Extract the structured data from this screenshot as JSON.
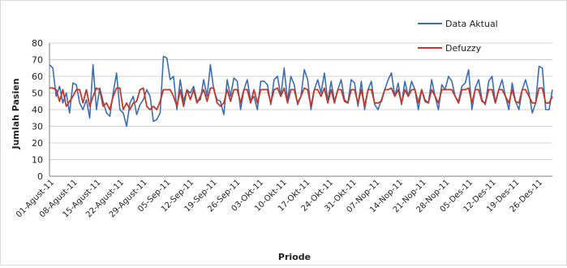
{
  "chart_data": {
    "type": "line",
    "title": "",
    "xlabel": "Priode",
    "ylabel": "Jumlah Pasien",
    "ylim": [
      0,
      80
    ],
    "yticks": [
      0,
      10,
      20,
      30,
      40,
      50,
      60,
      70,
      80
    ],
    "grid": "horizontal",
    "legend": "top-right",
    "x_tick_labels": [
      "01-Agust-11",
      "08-Agust-11",
      "15-Agust-11",
      "22-Agust-11",
      "29-Agust-11",
      "05-Sep-11",
      "12-Sep-11",
      "19-Sep-11",
      "26-Sep-11",
      "03-Okt-11",
      "10-Okt-11",
      "17-Okt-11",
      "24-Okt-11",
      "31-Okt-11",
      "07-Nop-11",
      "14-Nop-11",
      "21-Nop-11",
      "28-Nop-11",
      "05-Des-11",
      "12-Des-11",
      "19-Des-11",
      "26-Des-11"
    ],
    "series": [
      {
        "name": "Data Aktual",
        "color": "#3d6db3",
        "values": [
          67,
          65,
          48,
          54,
          44,
          50,
          38,
          56,
          55,
          44,
          40,
          46,
          35,
          67,
          40,
          53,
          45,
          38,
          36,
          50,
          62,
          40,
          38,
          30,
          44,
          48,
          37,
          43,
          46,
          52,
          48,
          33,
          34,
          38,
          72,
          71,
          58,
          60,
          40,
          58,
          45,
          52,
          50,
          54,
          45,
          46,
          58,
          48,
          67,
          52,
          46,
          45,
          37,
          58,
          48,
          59,
          57,
          40,
          52,
          58,
          45,
          48,
          40,
          57,
          57,
          55,
          43,
          58,
          60,
          48,
          65,
          45,
          60,
          55,
          43,
          48,
          64,
          58,
          40,
          52,
          58,
          50,
          62,
          45,
          57,
          45,
          52,
          58,
          46,
          44,
          58,
          56,
          42,
          57,
          40,
          52,
          57,
          43,
          40,
          46,
          52,
          58,
          62,
          48,
          56,
          43,
          57,
          48,
          57,
          52,
          40,
          52,
          46,
          44,
          58,
          48,
          40,
          55,
          52,
          60,
          57,
          48,
          45,
          54,
          56,
          64,
          40,
          53,
          58,
          46,
          43,
          57,
          60,
          44,
          52,
          58,
          48,
          40,
          56,
          45,
          40,
          52,
          58,
          50,
          38,
          44,
          66,
          65,
          40,
          40,
          52
        ]
      },
      {
        "name": "Defuzzy",
        "color": "#c0392b",
        "values": [
          53,
          53,
          52,
          45,
          52,
          42,
          45,
          48,
          52,
          52,
          44,
          52,
          42,
          48,
          53,
          52,
          42,
          44,
          40,
          48,
          53,
          53,
          40,
          44,
          40,
          44,
          45,
          52,
          53,
          42,
          40,
          42,
          40,
          45,
          52,
          52,
          52,
          48,
          42,
          52,
          42,
          52,
          46,
          52,
          44,
          48,
          52,
          45,
          53,
          53,
          44,
          42,
          44,
          52,
          45,
          52,
          52,
          44,
          52,
          52,
          44,
          52,
          44,
          52,
          52,
          52,
          44,
          52,
          53,
          48,
          53,
          44,
          52,
          52,
          44,
          48,
          53,
          52,
          42,
          52,
          52,
          48,
          53,
          44,
          52,
          44,
          52,
          52,
          45,
          44,
          52,
          52,
          44,
          52,
          42,
          52,
          52,
          44,
          44,
          45,
          52,
          52,
          53,
          48,
          52,
          44,
          52,
          48,
          52,
          52,
          44,
          52,
          45,
          44,
          52,
          48,
          44,
          52,
          52,
          52,
          52,
          48,
          44,
          52,
          52,
          53,
          44,
          52,
          52,
          45,
          44,
          52,
          52,
          44,
          52,
          52,
          48,
          44,
          52,
          45,
          44,
          52,
          52,
          48,
          44,
          44,
          53,
          53,
          44,
          44,
          48
        ]
      }
    ]
  }
}
